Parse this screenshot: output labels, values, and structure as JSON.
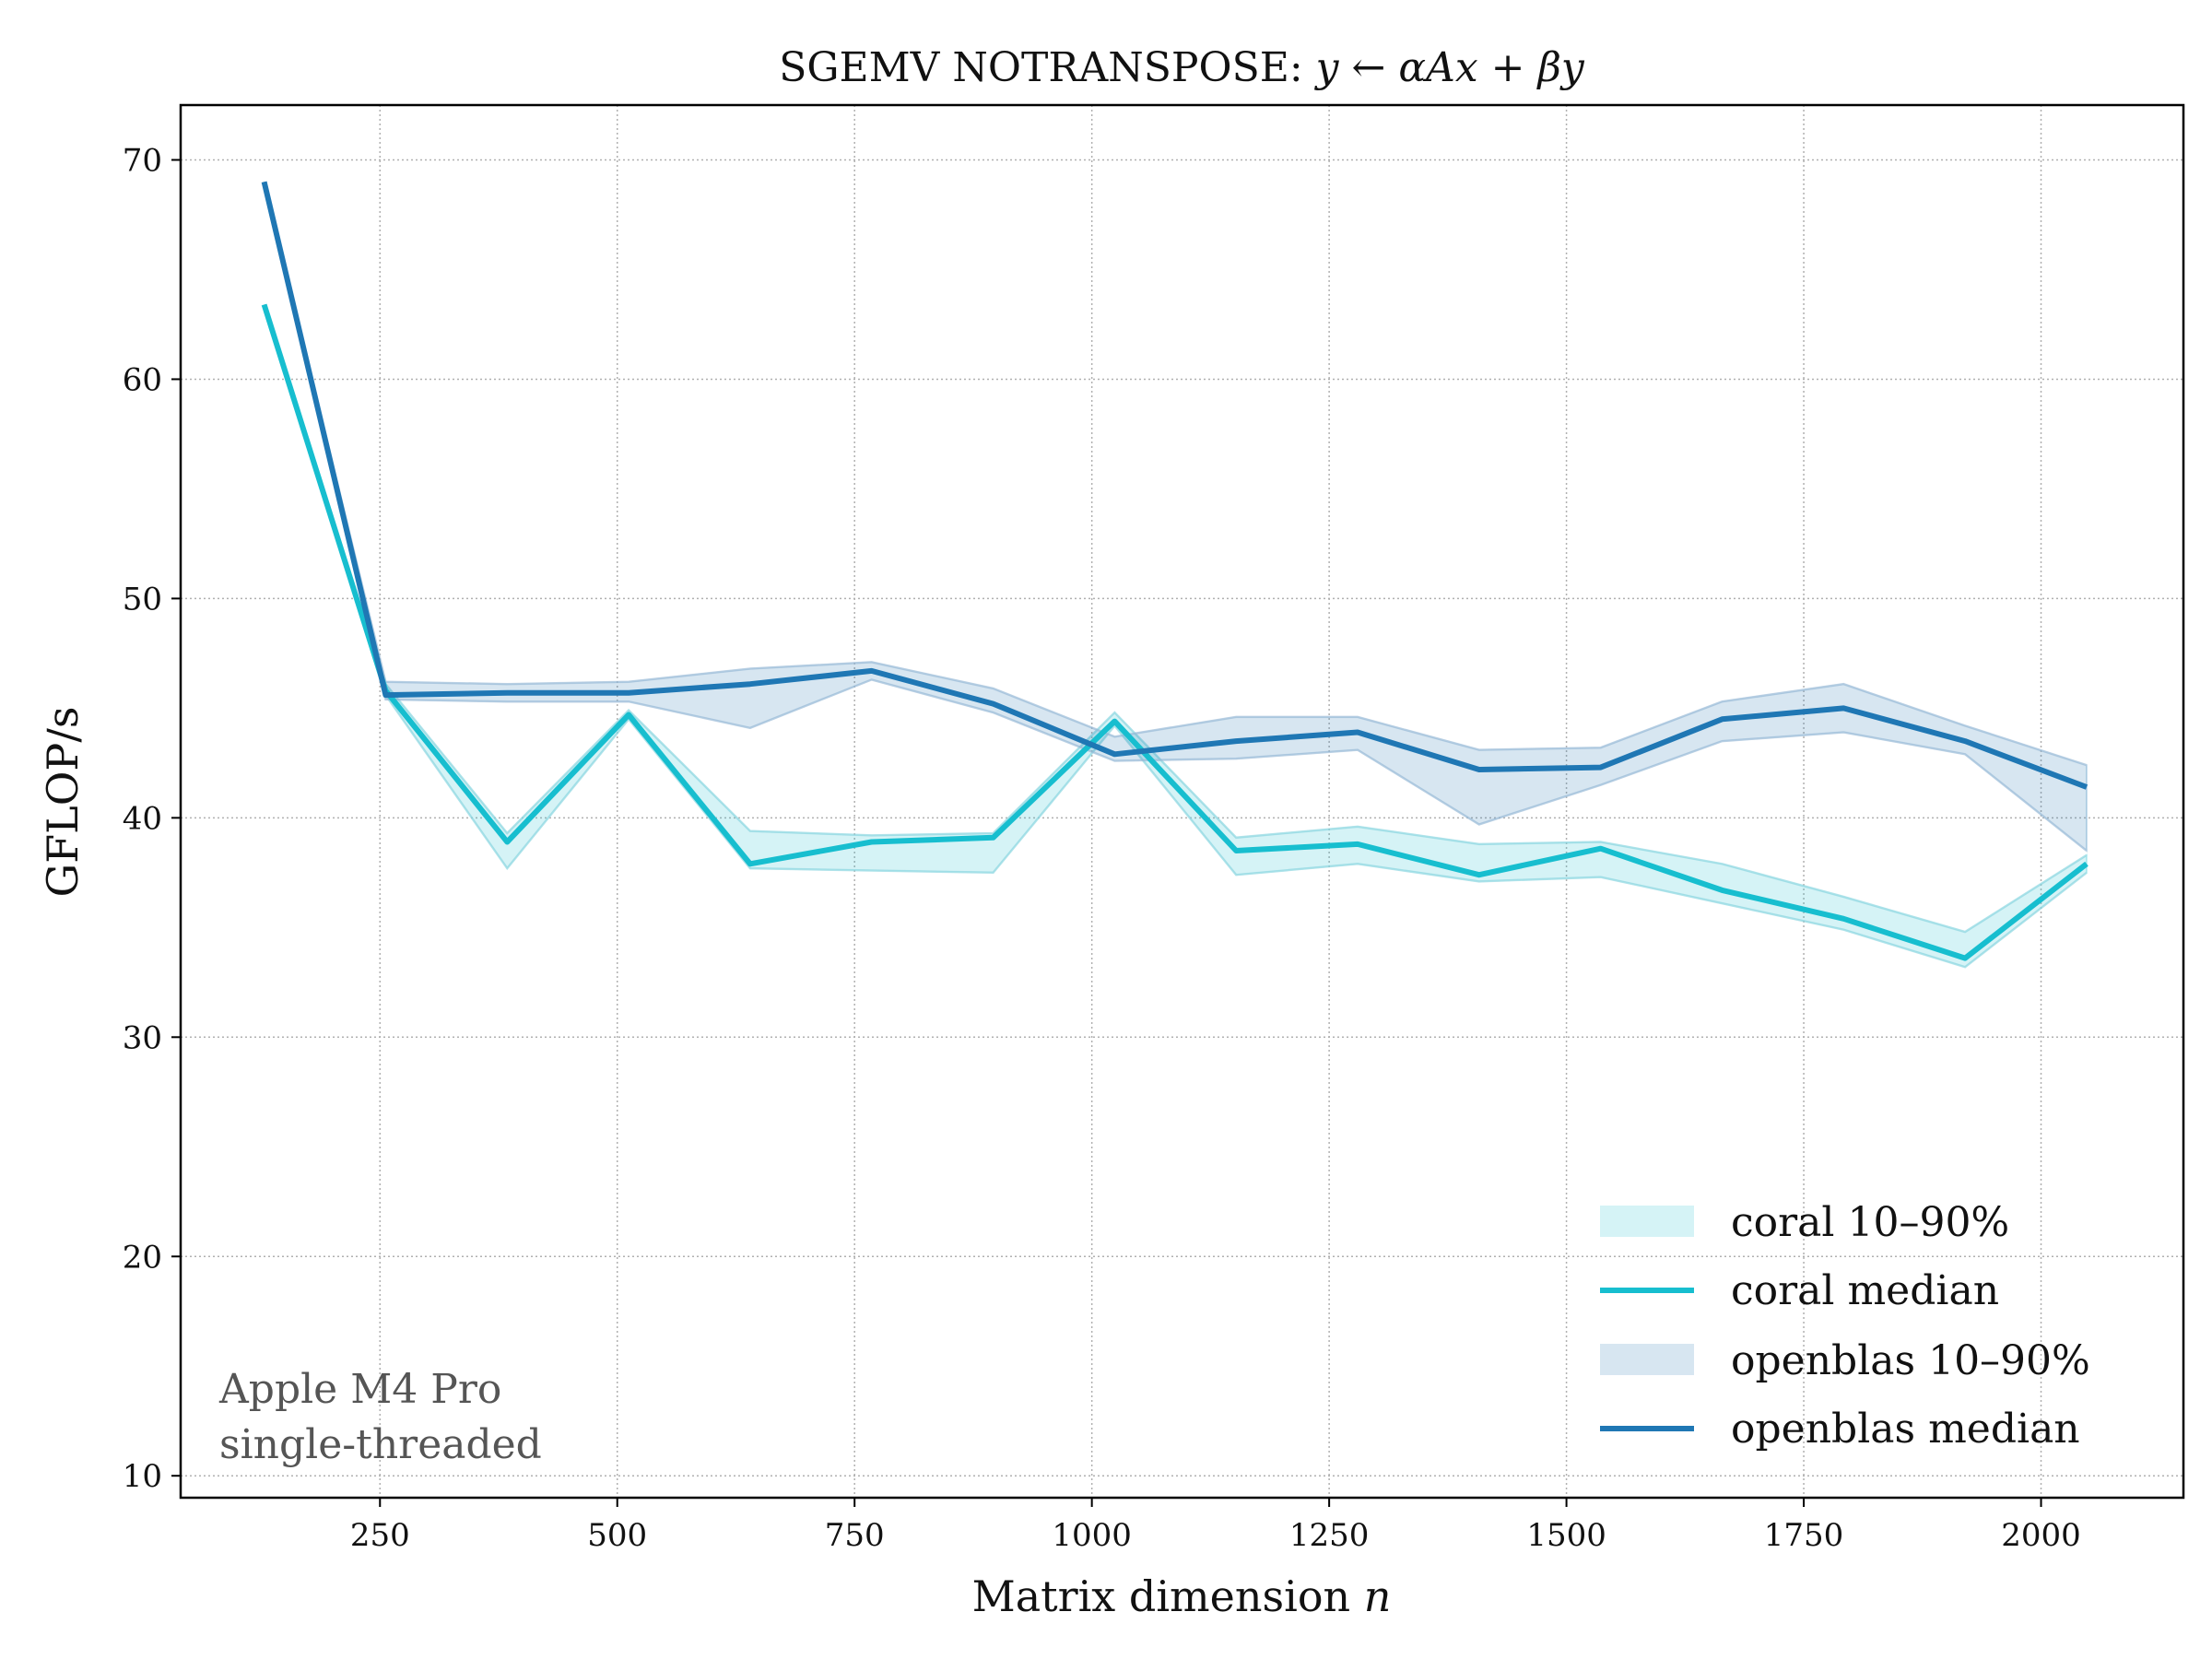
{
  "chart_data": {
    "type": "line",
    "title": "SGEMV NOTRANSPOSE: ",
    "title_math": "y ← αAx + βy",
    "xlabel": "Matrix dimension ",
    "xlabel_math": "n",
    "ylabel": "GFLOP/s",
    "xlim": [
      40,
      2150
    ],
    "ylim": [
      9,
      72.5
    ],
    "xticks": [
      250,
      500,
      750,
      1000,
      1250,
      1500,
      1750,
      2000
    ],
    "yticks": [
      10,
      20,
      30,
      40,
      50,
      60,
      70
    ],
    "grid": true,
    "legend_position": "lower-right",
    "annotation": [
      "Apple M4 Pro",
      "single-threaded"
    ],
    "x": [
      128,
      256,
      384,
      512,
      640,
      768,
      896,
      1024,
      1152,
      1280,
      1408,
      1536,
      1664,
      1792,
      1920,
      2048
    ],
    "series": [
      {
        "name": "coral",
        "color": "#17becf",
        "band_color": "#9ad9e3",
        "band_label": "coral 10–90%",
        "median_label": "coral median",
        "median": [
          63.4,
          45.8,
          38.9,
          44.7,
          37.9,
          38.9,
          39.1,
          44.4,
          38.5,
          38.8,
          37.4,
          38.6,
          36.7,
          35.4,
          33.6,
          37.9
        ],
        "p10": [
          63.4,
          45.6,
          37.7,
          44.5,
          37.7,
          37.6,
          37.5,
          44.2,
          37.4,
          37.9,
          37.1,
          37.3,
          36.1,
          34.9,
          33.2,
          37.5
        ],
        "p90": [
          63.4,
          46.1,
          39.3,
          44.9,
          39.4,
          39.2,
          39.3,
          44.8,
          39.1,
          39.6,
          38.8,
          38.9,
          37.9,
          36.4,
          34.8,
          38.3
        ]
      },
      {
        "name": "openblas",
        "color": "#1f77b4",
        "band_color": "#a9c3dc",
        "band_label": "openblas 10–90%",
        "median_label": "openblas median",
        "median": [
          69.0,
          45.6,
          45.7,
          45.7,
          46.1,
          46.7,
          45.2,
          42.9,
          43.5,
          43.9,
          42.2,
          42.3,
          44.5,
          45.0,
          43.5,
          41.4
        ],
        "p10": [
          69.0,
          45.4,
          45.3,
          45.3,
          44.1,
          46.3,
          44.8,
          42.6,
          42.7,
          43.1,
          39.7,
          41.5,
          43.5,
          43.9,
          42.9,
          38.5
        ],
        "p90": [
          69.0,
          46.2,
          46.1,
          46.2,
          46.8,
          47.1,
          45.9,
          43.7,
          44.6,
          44.6,
          43.1,
          43.2,
          45.3,
          46.1,
          44.2,
          42.4
        ]
      }
    ]
  }
}
